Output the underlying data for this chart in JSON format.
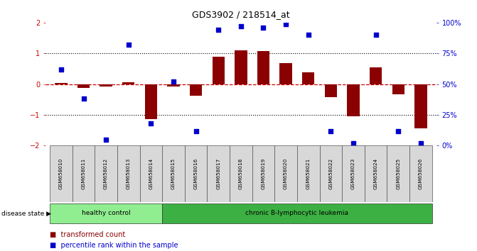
{
  "title": "GDS3902 / 218514_at",
  "samples": [
    "GSM658010",
    "GSM658011",
    "GSM658012",
    "GSM658013",
    "GSM658014",
    "GSM658015",
    "GSM658016",
    "GSM658017",
    "GSM658018",
    "GSM658019",
    "GSM658020",
    "GSM658021",
    "GSM658022",
    "GSM658023",
    "GSM658024",
    "GSM658025",
    "GSM658026"
  ],
  "bar_values": [
    0.04,
    -0.12,
    -0.07,
    0.06,
    -1.15,
    -0.07,
    -0.37,
    0.88,
    1.1,
    1.08,
    0.68,
    0.38,
    -0.42,
    -1.05,
    0.55,
    -0.33,
    -1.45
  ],
  "percentile_values": [
    62,
    38,
    5,
    82,
    18,
    52,
    12,
    94,
    97,
    96,
    99,
    90,
    12,
    2,
    90,
    12,
    2
  ],
  "bar_color": "#8B0000",
  "percentile_color": "#0000CD",
  "healthy_color": "#90EE90",
  "leukemia_color": "#3CB043",
  "healthy_label": "healthy control",
  "leukemia_label": "chronic B-lymphocytic leukemia",
  "disease_state_label": "disease state",
  "healthy_count": 5,
  "legend_bar_label": "transformed count",
  "legend_pct_label": "percentile rank within the sample",
  "ylim_left": [
    -2,
    2
  ],
  "yticks_left": [
    -2,
    -1,
    0,
    1,
    2
  ],
  "ylim_right": [
    0,
    100
  ],
  "yticks_right": [
    0,
    25,
    50,
    75,
    100
  ],
  "ylabel_right_labels": [
    "0%",
    "25%",
    "50%",
    "75%",
    "100%"
  ],
  "ylabel_left_color": "#CC0000",
  "ylabel_right_color": "#0000CD",
  "hline_color": "#CC0000",
  "dotted_color": "black",
  "background_color": "#ffffff"
}
